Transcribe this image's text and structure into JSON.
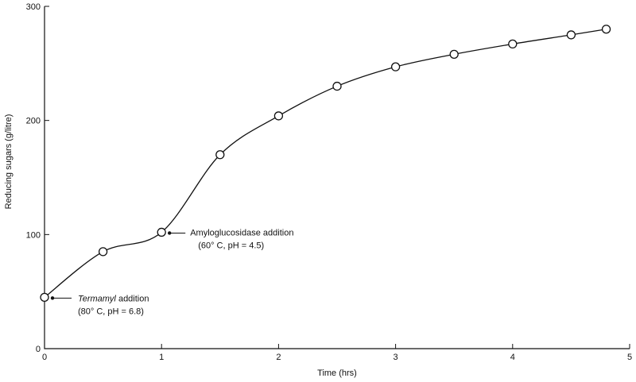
{
  "chart_data": {
    "type": "line",
    "title": "",
    "xlabel": "Time (hrs)",
    "ylabel": "Reducing sugars (g/litre)",
    "xlim": [
      0,
      5
    ],
    "ylim": [
      0,
      300
    ],
    "x_ticks": [
      0,
      1,
      2,
      3,
      4,
      5
    ],
    "y_ticks": [
      0,
      100,
      200,
      300
    ],
    "x_tick_labels": [
      "0",
      "1",
      "2",
      "3",
      "4",
      "5"
    ],
    "y_tick_labels": [
      "0",
      "100",
      "200",
      "300"
    ],
    "grid": false,
    "series": [
      {
        "x": [
          0,
          0.5,
          1.0,
          1.5,
          2.0,
          2.5,
          3.0,
          3.5,
          4.0,
          4.5,
          4.8
        ],
        "y": [
          45,
          85,
          102,
          170,
          204,
          230,
          247,
          258,
          267,
          275,
          280
        ]
      }
    ],
    "annotations": [
      {
        "x": 0,
        "y": 45,
        "lines": [
          "Termamyl addition",
          "(80° C, pH = 6.8)"
        ],
        "italic_word": "Termamyl"
      },
      {
        "x": 1.0,
        "y": 102,
        "lines": [
          "Amyloglucosidase addition",
          "(60° C, pH = 4.5)"
        ]
      }
    ]
  }
}
